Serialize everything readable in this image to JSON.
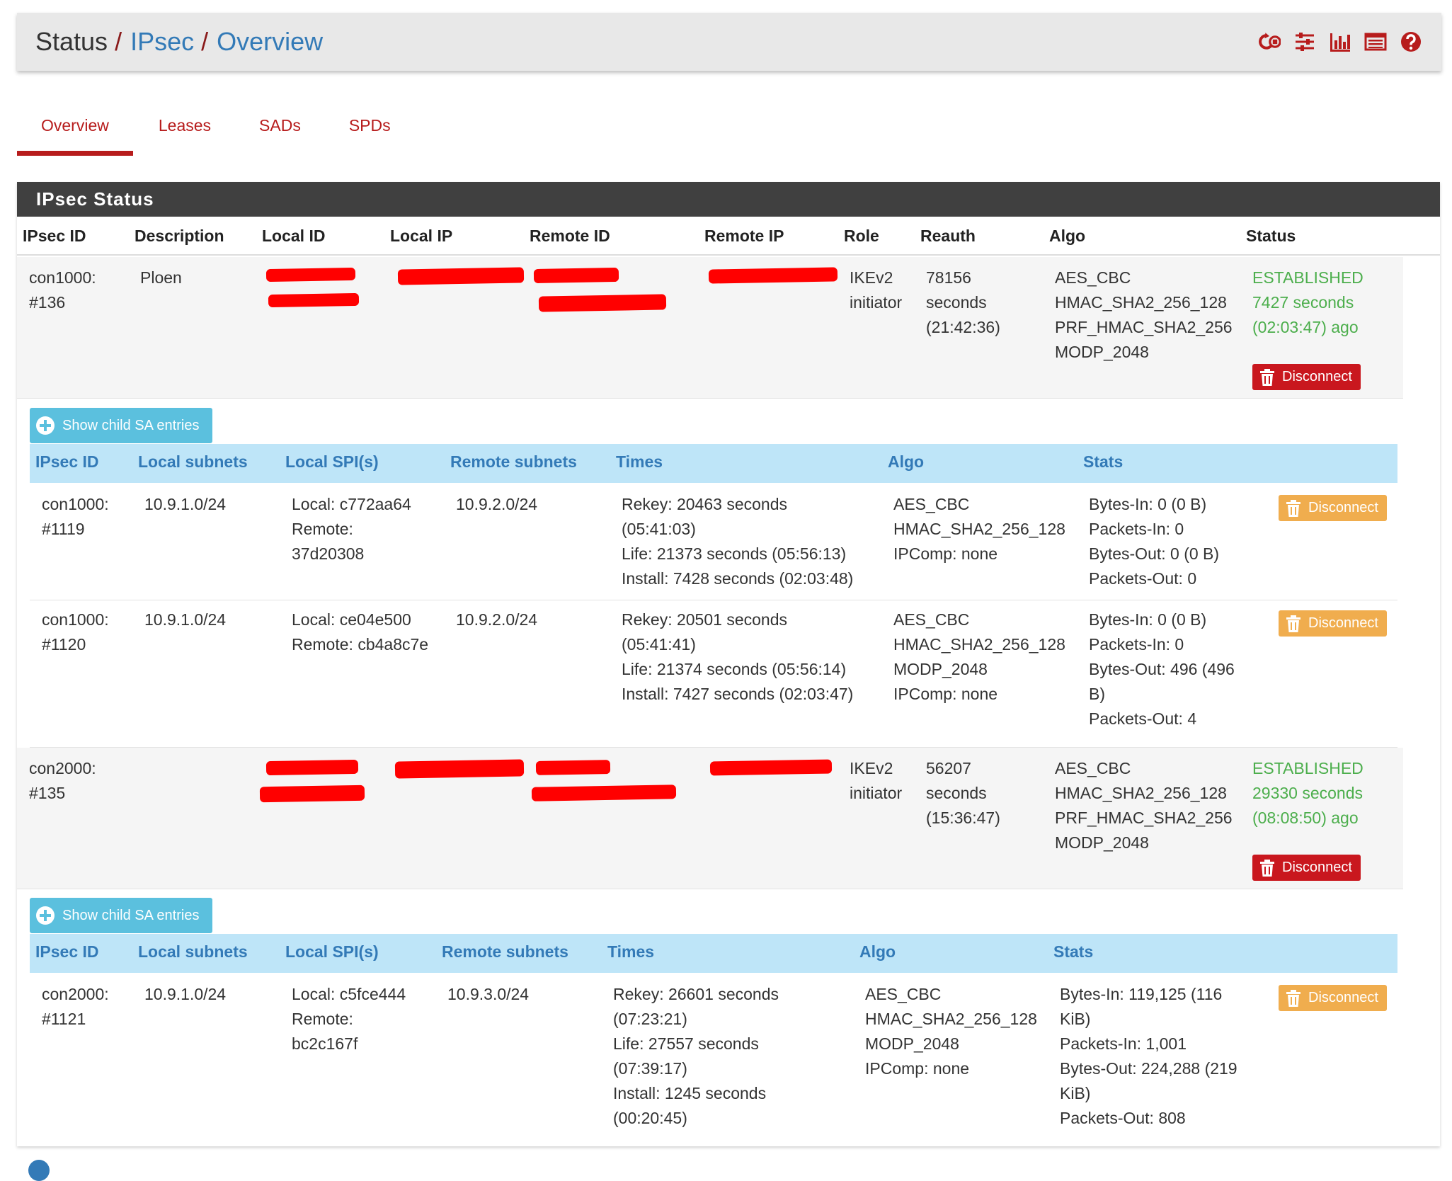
{
  "breadcrumb": {
    "home": "Status",
    "section": "IPsec",
    "page": "Overview",
    "separator": "/"
  },
  "header_icons": [
    "restart-service-icon",
    "sliders-icon",
    "chart-icon",
    "log-icon",
    "help-icon"
  ],
  "tabs": [
    {
      "label": "Overview",
      "active": true
    },
    {
      "label": "Leases",
      "active": false
    },
    {
      "label": "SADs",
      "active": false
    },
    {
      "label": "SPDs",
      "active": false
    }
  ],
  "panel": {
    "title": "IPsec Status",
    "columns": [
      "IPsec ID",
      "Description",
      "Local ID",
      "Local IP",
      "Remote ID",
      "Remote IP",
      "Role",
      "Reauth",
      "Algo",
      "Status"
    ]
  },
  "connections": [
    {
      "id": "con1000:\n#136",
      "description": "Ploen",
      "role": "IKEv2\ninitiator",
      "reauth": "78156\nseconds\n(21:42:36)",
      "algo": "AES_CBC\nHMAC_SHA2_256_128\nPRF_HMAC_SHA2_256\nMODP_2048",
      "status": "ESTABLISHED\n7427 seconds\n(02:03:47) ago",
      "disconnect_label": "Disconnect",
      "show_child_label": "Show child SA entries",
      "child_columns": [
        "IPsec ID",
        "Local subnets",
        "Local SPI(s)",
        "Remote subnets",
        "Times",
        "Algo",
        "Stats"
      ],
      "children": [
        {
          "id": "con1000:\n#1119",
          "local_subnets": "10.9.1.0/24",
          "spis": "Local: c772aa64\nRemote:\n37d20308",
          "remote_subnets": "10.9.2.0/24",
          "times": "Rekey: 20463 seconds\n(05:41:03)\nLife: 21373 seconds (05:56:13)\nInstall: 7428 seconds (02:03:48)",
          "algo": "AES_CBC\nHMAC_SHA2_256_128\nIPComp: none",
          "stats": "Bytes-In: 0 (0 B)\nPackets-In: 0\nBytes-Out: 0 (0 B)\nPackets-Out: 0",
          "disconnect_label": "Disconnect"
        },
        {
          "id": "con1000:\n#1120",
          "local_subnets": "10.9.1.0/24",
          "spis": "Local: ce04e500\nRemote: cb4a8c7e",
          "remote_subnets": "10.9.2.0/24",
          "times": "Rekey: 20501 seconds\n(05:41:41)\nLife: 21374 seconds (05:56:14)\nInstall: 7427 seconds (02:03:47)",
          "algo": "AES_CBC\nHMAC_SHA2_256_128\nMODP_2048\nIPComp: none",
          "stats": "Bytes-In: 0 (0 B)\nPackets-In: 0\nBytes-Out: 496 (496\nB)\nPackets-Out: 4",
          "disconnect_label": "Disconnect"
        }
      ]
    },
    {
      "id": "con2000:\n#135",
      "description": "",
      "role": "IKEv2\ninitiator",
      "reauth": "56207\nseconds\n(15:36:47)",
      "algo": "AES_CBC\nHMAC_SHA2_256_128\nPRF_HMAC_SHA2_256\nMODP_2048",
      "status": "ESTABLISHED\n29330 seconds\n(08:08:50) ago",
      "disconnect_label": "Disconnect",
      "show_child_label": "Show child SA entries",
      "child_columns": [
        "IPsec ID",
        "Local subnets",
        "Local SPI(s)",
        "Remote subnets",
        "Times",
        "Algo",
        "Stats"
      ],
      "children": [
        {
          "id": "con2000:\n#1121",
          "local_subnets": "10.9.1.0/24",
          "spis": "Local: c5fce444\nRemote:\nbc2c167f",
          "remote_subnets": "10.9.3.0/24",
          "times": "Rekey: 26601 seconds\n(07:23:21)\nLife: 27557 seconds\n(07:39:17)\nInstall: 1245 seconds\n(00:20:45)",
          "algo": "AES_CBC\nHMAC_SHA2_256_128\nMODP_2048\nIPComp: none",
          "stats": "Bytes-In: 119,125 (116\nKiB)\nPackets-In: 1,001\nBytes-Out: 224,288 (219\nKiB)\nPackets-Out: 808",
          "disconnect_label": "Disconnect"
        }
      ]
    }
  ],
  "colors": {
    "brand_red": "#b71c1c",
    "link_blue": "#337ab7",
    "established_green": "#4cae4c",
    "child_header_bg": "#bee5f8",
    "show_btn_bg": "#5bc0de",
    "danger_btn": "#c9171e",
    "warning_btn": "#f0ad4e",
    "redaction": "#ff0000"
  }
}
